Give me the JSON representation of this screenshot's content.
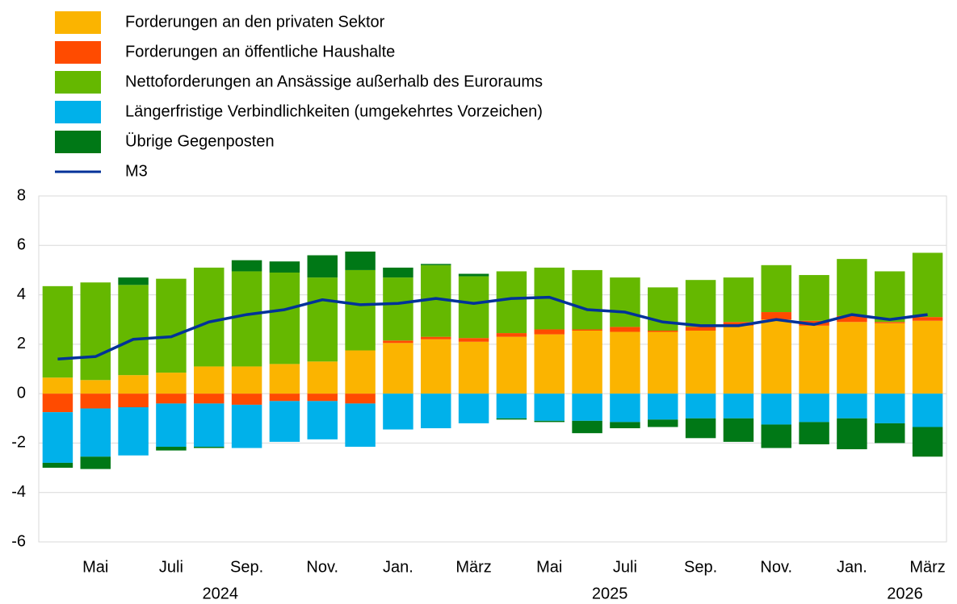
{
  "chart_data": {
    "type": "stacked-bar-line",
    "categories": [
      null,
      "Mai",
      null,
      "Juli",
      null,
      "Sep.",
      null,
      "Nov.",
      null,
      "Jan.",
      null,
      "März",
      null,
      "Mai",
      null,
      "Juli",
      null,
      "Sep.",
      null,
      "Nov.",
      null,
      "Jan.",
      null,
      "März"
    ],
    "years": [
      "2024",
      "2025",
      "2026"
    ],
    "series": [
      {
        "name": "Forderungen an den privaten Sektor",
        "color": "#fbb400",
        "kind": "bar",
        "values": [
          0.65,
          0.55,
          0.75,
          0.85,
          1.1,
          1.1,
          1.2,
          1.3,
          1.75,
          2.05,
          2.2,
          2.1,
          2.3,
          2.4,
          2.55,
          2.5,
          2.5,
          2.55,
          2.75,
          3.0,
          2.75,
          2.9,
          2.85,
          2.95
        ]
      },
      {
        "name": "Forderungen an öffentliche Haushalte",
        "color": "#ff4b00",
        "kind": "bar",
        "values": [
          -0.75,
          -0.6,
          -0.55,
          -0.4,
          -0.4,
          -0.45,
          -0.3,
          -0.3,
          -0.4,
          0.1,
          0.1,
          0.15,
          0.15,
          0.2,
          0.05,
          0.2,
          0.05,
          0.15,
          0.15,
          0.3,
          0.2,
          0.25,
          0.05,
          0.15
        ]
      },
      {
        "name": "Nettoforderungen an Ansässige außerhalb des Euroraums",
        "color": "#65b800",
        "kind": "bar",
        "values": [
          3.7,
          3.95,
          3.65,
          3.8,
          4.0,
          3.85,
          3.7,
          3.4,
          3.25,
          2.55,
          2.9,
          2.5,
          2.5,
          2.5,
          2.4,
          2.0,
          1.75,
          1.9,
          1.8,
          1.9,
          1.85,
          2.3,
          2.05,
          2.6
        ]
      },
      {
        "name": "Längerfristige Verbindlichkeiten (umgekehrtes Vorzeichen)",
        "color": "#00b1ea",
        "kind": "bar",
        "values": [
          -2.05,
          -1.95,
          -1.95,
          -1.75,
          -1.75,
          -1.75,
          -1.65,
          -1.55,
          -1.75,
          -1.45,
          -1.4,
          -1.2,
          -1.0,
          -1.1,
          -1.1,
          -1.15,
          -1.05,
          -1.0,
          -1.0,
          -1.25,
          -1.15,
          -1.0,
          -1.2,
          -1.35
        ]
      },
      {
        "name": "Übrige Gegenposten",
        "color": "#007816",
        "kind": "bar",
        "values": [
          -0.2,
          -0.5,
          0.3,
          -0.15,
          -0.05,
          0.45,
          0.45,
          0.9,
          0.75,
          0.4,
          0.05,
          0.1,
          -0.05,
          -0.05,
          -0.5,
          -0.25,
          -0.3,
          -0.8,
          -0.95,
          -0.95,
          -0.9,
          -1.25,
          -0.8,
          -1.2
        ]
      },
      {
        "name": "M3",
        "color": "#003299",
        "kind": "line",
        "values": [
          1.4,
          1.5,
          2.2,
          2.3,
          2.9,
          3.2,
          3.4,
          3.8,
          3.6,
          3.65,
          3.85,
          3.65,
          3.85,
          3.9,
          3.4,
          3.3,
          2.9,
          2.75,
          2.75,
          3.0,
          2.8,
          3.2,
          3.0,
          3.2
        ]
      }
    ],
    "ylim": [
      -6,
      8
    ],
    "yticks": [
      -6,
      -4,
      -2,
      0,
      2,
      4,
      6,
      8
    ],
    "grid": true
  }
}
